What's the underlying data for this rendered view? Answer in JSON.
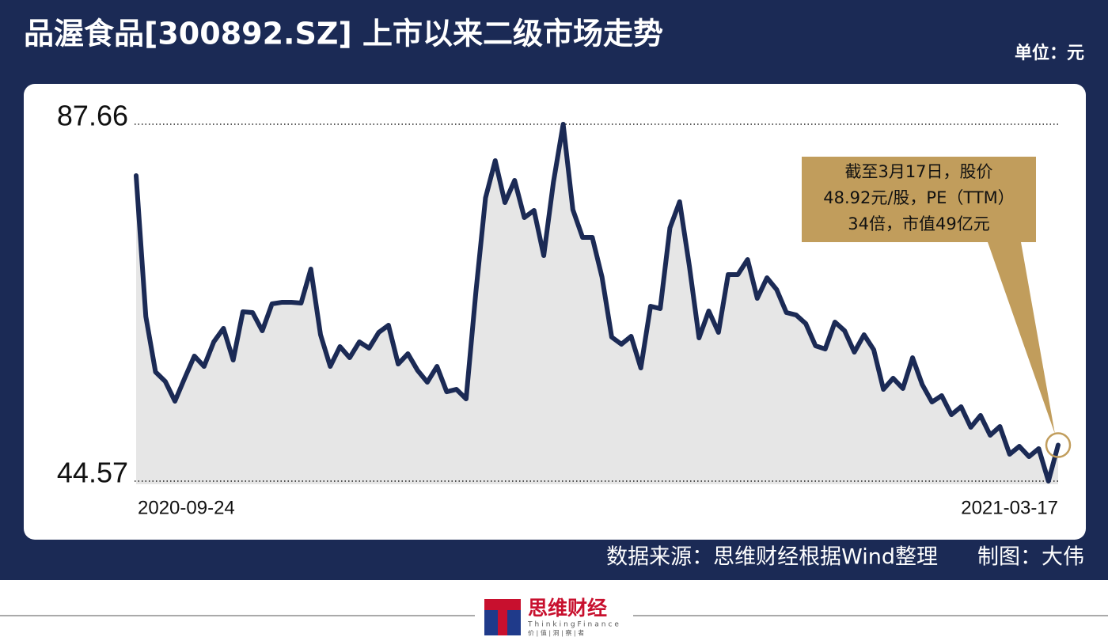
{
  "chart_data": {
    "type": "line",
    "title": "品渥食品[300892.SZ] 上市以来二级市场走势",
    "unit": "单位：元",
    "categories": [
      "2020-09-24",
      null,
      null,
      null,
      null,
      null,
      null,
      null,
      null,
      null,
      null,
      null,
      null,
      null,
      null,
      null,
      null,
      null,
      null,
      null,
      null,
      null,
      null,
      null,
      null,
      null,
      null,
      null,
      null,
      null,
      null,
      null,
      null,
      null,
      null,
      null,
      null,
      null,
      null,
      null,
      null,
      null,
      null,
      null,
      null,
      null,
      null,
      null,
      null,
      null,
      null,
      null,
      null,
      null,
      null,
      null,
      null,
      null,
      null,
      null,
      null,
      null,
      null,
      null,
      null,
      null,
      null,
      null,
      null,
      null,
      null,
      null,
      null,
      null,
      null,
      null,
      null,
      null,
      null,
      null,
      null,
      null,
      null,
      null,
      null,
      null,
      null,
      null,
      null,
      null,
      null,
      null,
      null,
      null,
      null,
      "2021-03-17"
    ],
    "series": [
      {
        "color": "#1b2a55",
        "values": [
          81.45,
          64.44,
          57.75,
          56.61,
          54.22,
          56.99,
          59.67,
          58.42,
          61.38,
          63.01,
          59.19,
          65.02,
          64.92,
          62.72,
          65.97,
          66.16,
          66.16,
          66.07,
          70.17,
          62.24,
          58.42,
          60.81,
          59.47,
          61.38,
          60.62,
          62.53,
          63.39,
          58.71,
          59.95,
          57.94,
          56.51,
          58.42,
          55.36,
          55.65,
          54.5,
          67.31,
          78.77,
          83.26,
          78.2,
          80.88,
          76.39,
          77.25,
          71.8,
          80.69,
          87.66,
          77.34,
          74.0,
          74.0,
          69.22,
          61.96,
          61.1,
          62.05,
          58.23,
          65.68,
          65.4,
          75.14,
          78.3,
          70.56,
          61.86,
          65.11,
          62.53,
          69.51,
          69.51,
          71.32,
          66.64,
          69.12,
          67.69,
          64.92,
          64.63,
          63.58,
          60.91,
          60.52,
          63.77,
          62.72,
          60.14,
          62.24,
          60.43,
          55.65,
          56.99,
          55.75,
          59.47,
          56.22,
          54.12,
          54.89,
          52.59,
          53.55,
          51.07,
          52.5,
          50.11,
          51.16,
          47.82,
          48.77,
          47.53,
          48.49,
          44.57,
          48.92
        ]
      }
    ],
    "ylim": [
      44.57,
      87.66
    ],
    "yticks": [
      44.57,
      87.66
    ],
    "grid": true,
    "annotation": [
      "截至3月17日，股价",
      "48.92元/股，PE（TTM）",
      "34倍，市值49亿元"
    ],
    "source": "数据来源：思维财经根据Wind整理",
    "author": "制图：大伟",
    "logo": {
      "name": "思维财经",
      "english": "ThinkingFinance",
      "motto": "价 | 值 | 洞 | 察 | 者"
    }
  }
}
